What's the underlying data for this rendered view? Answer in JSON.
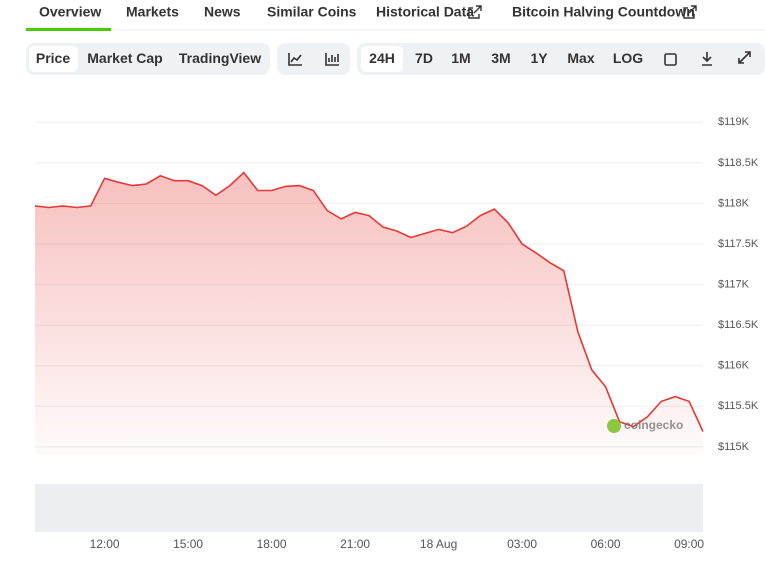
{
  "nav_tabs": [
    "Overview",
    "Markets",
    "News",
    "Similar Coins",
    "Historical Data",
    "Bitcoin Halving Countdown"
  ],
  "chart_view_buttons": [
    "Price",
    "Market Cap",
    "TradingView"
  ],
  "range_buttons": [
    "24H",
    "7D",
    "1M",
    "3M",
    "1Y",
    "Max",
    "LOG"
  ],
  "watermark": "coingecko",
  "chart_data": {
    "type": "area",
    "x": [
      "09:30",
      "10:00",
      "10:30",
      "11:00",
      "11:30",
      "12:00",
      "12:30",
      "13:00",
      "13:30",
      "14:00",
      "14:30",
      "15:00",
      "15:30",
      "16:00",
      "16:30",
      "17:00",
      "17:30",
      "18:00",
      "18:30",
      "19:00",
      "19:30",
      "20:00",
      "20:30",
      "21:00",
      "21:30",
      "22:00",
      "22:30",
      "23:00",
      "23:30",
      "00:00",
      "00:30",
      "01:00",
      "01:30",
      "02:00",
      "02:30",
      "03:00",
      "03:30",
      "04:00",
      "04:30",
      "05:00",
      "05:30",
      "06:00",
      "06:30",
      "07:00",
      "07:30",
      "08:00",
      "08:30",
      "09:00",
      "09:30"
    ],
    "values": [
      117970,
      117950,
      117970,
      117950,
      117970,
      118310,
      118260,
      118220,
      118240,
      118340,
      118280,
      118280,
      118220,
      118100,
      118220,
      118380,
      118160,
      118160,
      118210,
      118220,
      118160,
      117910,
      117810,
      117890,
      117850,
      117710,
      117660,
      117580,
      117630,
      117680,
      117640,
      117720,
      117850,
      117930,
      117760,
      117500,
      117390,
      117270,
      117170,
      116420,
      115950,
      115740,
      115310,
      115250,
      115370,
      115560,
      115620,
      115560,
      115190
    ],
    "color": "#e53935",
    "ylim": [
      114900,
      119250
    ],
    "yticks": [
      {
        "value": 115000,
        "label": "$115K"
      },
      {
        "value": 115500,
        "label": "$115.5K"
      },
      {
        "value": 116000,
        "label": "$116K"
      },
      {
        "value": 116500,
        "label": "$116.5K"
      },
      {
        "value": 117000,
        "label": "$117K"
      },
      {
        "value": 117500,
        "label": "$117.5K"
      },
      {
        "value": 118000,
        "label": "$118K"
      },
      {
        "value": 118500,
        "label": "$118.5K"
      },
      {
        "value": 119000,
        "label": "$119K"
      }
    ],
    "xticks": [
      "12:00",
      "15:00",
      "18:00",
      "21:00",
      {
        "value": "00:00",
        "label": "18 Aug"
      },
      "03:00",
      "06:00",
      "09:00"
    ],
    "grid": true
  }
}
